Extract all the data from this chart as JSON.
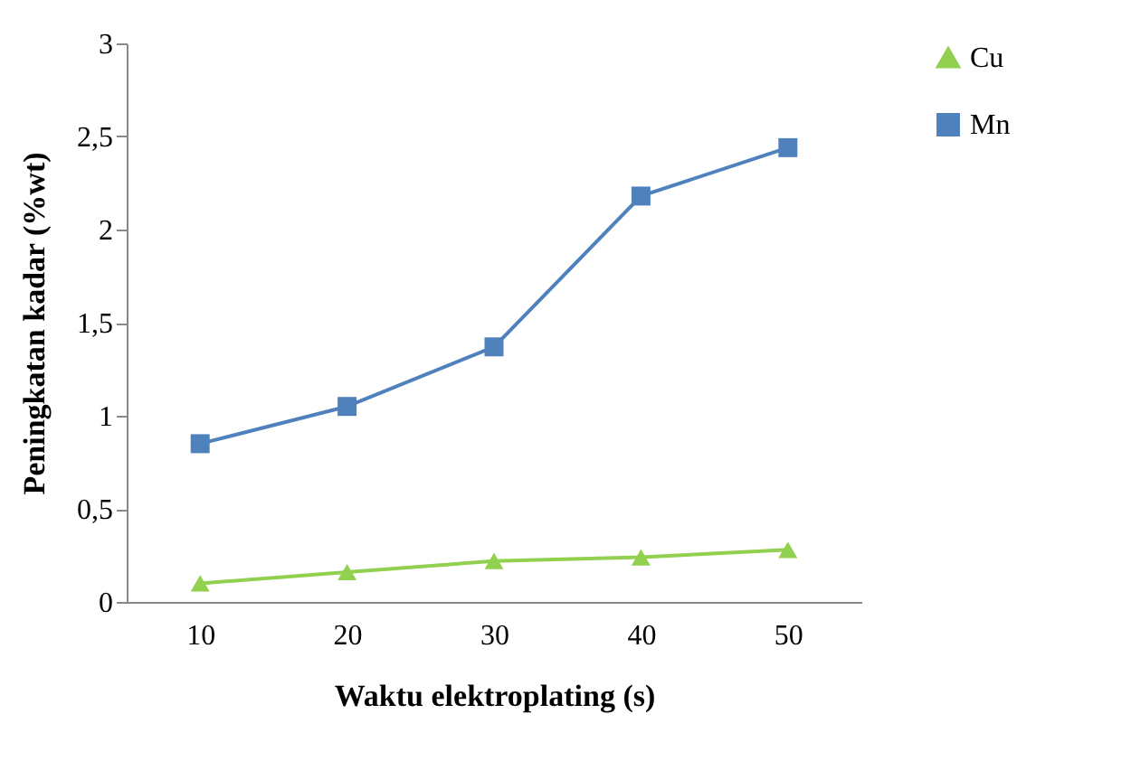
{
  "chart_data": {
    "type": "line",
    "xlabel": "Waktu elektroplating (s)",
    "ylabel": "Peningkatan kadar (%wt)",
    "categories": [
      "10",
      "20",
      "30",
      "40",
      "50"
    ],
    "series": [
      {
        "name": "Cu",
        "color": "#92d050",
        "marker": "triangle",
        "values": [
          0.1,
          0.16,
          0.22,
          0.24,
          0.28
        ]
      },
      {
        "name": "Mn",
        "color": "#4f81bd",
        "marker": "square",
        "values": [
          0.85,
          1.05,
          1.37,
          2.18,
          2.44
        ]
      }
    ],
    "ylim": [
      0,
      3
    ],
    "yticks": [
      0,
      {
        "value": 0.5,
        "label": "0,5"
      },
      1,
      {
        "value": 1.5,
        "label": "1,5"
      },
      2,
      {
        "value": 2.5,
        "label": "2,5"
      },
      3
    ],
    "grid": false,
    "legend": "right",
    "line_style": "solid"
  }
}
